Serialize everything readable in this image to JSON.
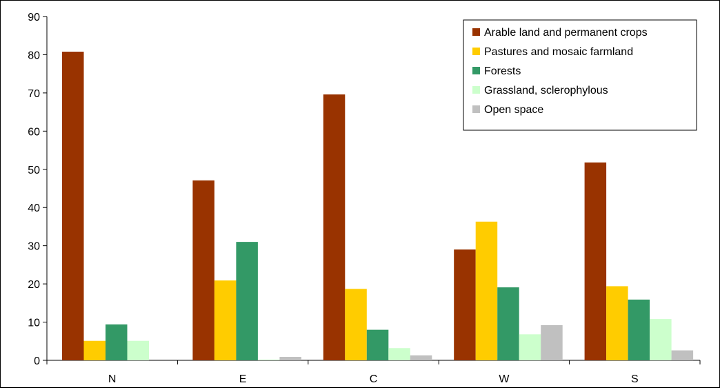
{
  "chart_data": {
    "type": "bar",
    "categories": [
      "N",
      "E",
      "C",
      "W",
      "S"
    ],
    "series": [
      {
        "name": "Arable land and permanent crops",
        "color": "#993300",
        "values": [
          80.8,
          47.1,
          69.6,
          29.0,
          51.8
        ]
      },
      {
        "name": "Pastures and mosaic farmland",
        "color": "#FFCC00",
        "values": [
          5.1,
          20.9,
          18.7,
          36.3,
          19.4
        ]
      },
      {
        "name": "Forests",
        "color": "#339966",
        "values": [
          9.4,
          31.0,
          8.0,
          19.1,
          15.9
        ]
      },
      {
        "name": "Grassland, sclerophylous",
        "color": "#CCFFCC",
        "values": [
          5.1,
          0.2,
          3.2,
          6.8,
          10.8
        ]
      },
      {
        "name": "Open space",
        "color": "#C0C0C0",
        "values": [
          0.0,
          0.9,
          1.3,
          9.2,
          2.6
        ]
      }
    ],
    "ylim": [
      0,
      90
    ],
    "yticks": [
      0,
      10,
      20,
      30,
      40,
      50,
      60,
      70,
      80,
      90
    ],
    "title": "",
    "xlabel": "",
    "ylabel": "",
    "legend_position": "top-right",
    "grid": false
  }
}
